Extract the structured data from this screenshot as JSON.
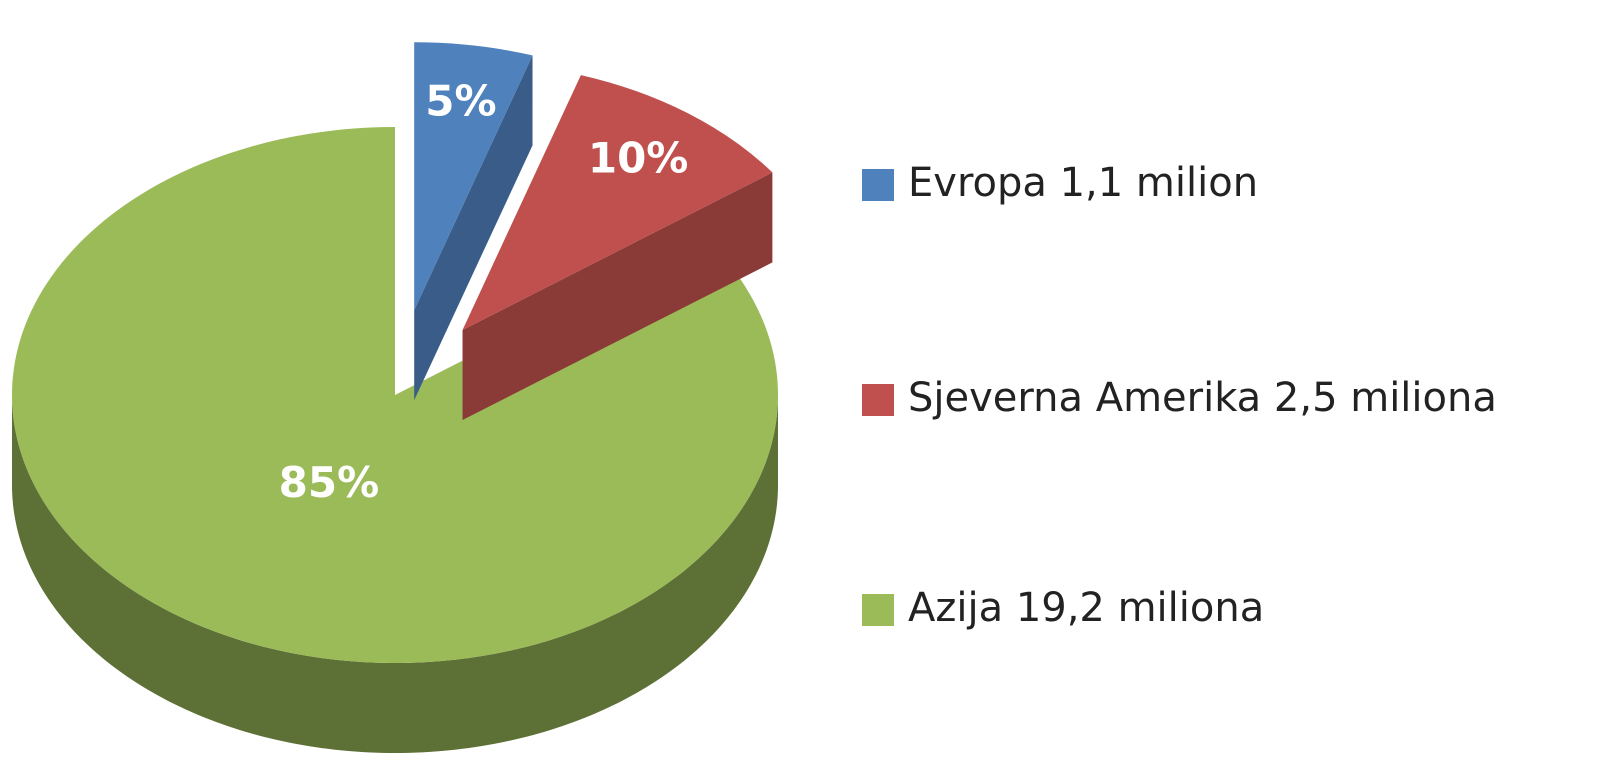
{
  "chart_data": {
    "type": "pie",
    "categories": [
      "Evropa 1,1 milion",
      "Sjeverna Amerika 2,5 miliona",
      "Azija 19,2 miliona"
    ],
    "values": [
      5,
      10,
      85
    ],
    "value_labels": [
      "5%",
      "10%",
      "85%"
    ],
    "colors": [
      "#4f81bd",
      "#c0504d",
      "#9bbb59"
    ]
  }
}
